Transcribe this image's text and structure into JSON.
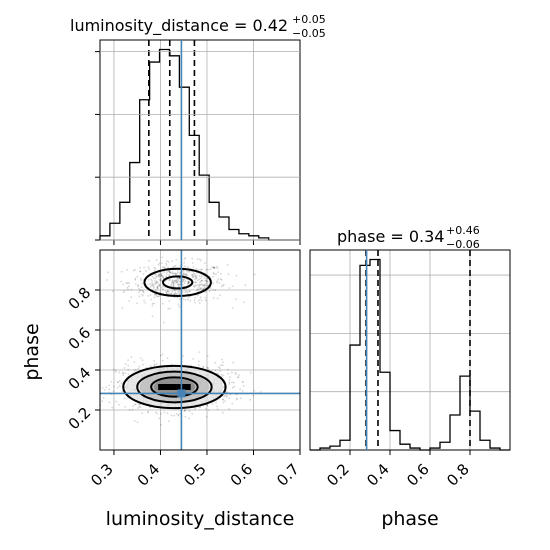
{
  "chart_data": {
    "type": "corner",
    "truth_color": "#4682b4",
    "parameters": [
      "luminosity_distance",
      "phase"
    ],
    "truths": {
      "luminosity_distance": 0.445,
      "phase": 0.283
    },
    "titles": {
      "luminosity_distance": {
        "main": "luminosity_distance = 0.42",
        "plus": "+0.05",
        "minus": "−0.05"
      },
      "phase": {
        "main": "phase = 0.34",
        "plus": "+0.46",
        "minus": "−0.06"
      }
    },
    "axis_labels": {
      "x1": "luminosity_distance",
      "x2": "phase",
      "y1": "phase"
    },
    "luminosity_distance_hist": {
      "xlim": [
        0.27,
        0.7
      ],
      "ylim": [
        0,
        100
      ],
      "bin_edges": [
        0.27,
        0.2913,
        0.3127,
        0.334,
        0.3553,
        0.3767,
        0.398,
        0.4193,
        0.4407,
        0.462,
        0.4833,
        0.5047,
        0.526,
        0.5473,
        0.5687,
        0.59,
        0.6113,
        0.6327,
        0.654,
        0.6753,
        0.7
      ],
      "counts": [
        2,
        8,
        18,
        37,
        67,
        85,
        91,
        88,
        73,
        50,
        31,
        18,
        11,
        5,
        3,
        2,
        1,
        0,
        0,
        0
      ],
      "quantiles": [
        0.375,
        0.42,
        0.473
      ]
    },
    "phase_hist": {
      "xlim": [
        0.0,
        1.0
      ],
      "ylim": [
        0,
        100
      ],
      "bin_edges": [
        0.0,
        0.05,
        0.1,
        0.15,
        0.2,
        0.25,
        0.3,
        0.35,
        0.4,
        0.45,
        0.5,
        0.55,
        0.6,
        0.65,
        0.7,
        0.75,
        0.8,
        0.85,
        0.9,
        0.95,
        1.0
      ],
      "counts": [
        0,
        1,
        2,
        5,
        54,
        95,
        98,
        40,
        10,
        3,
        1,
        0,
        1,
        4,
        18,
        38,
        20,
        5,
        1,
        0
      ],
      "quantiles": [
        0.28,
        0.34,
        0.8
      ]
    },
    "scatter_2d": {
      "xlim": [
        0.27,
        0.7
      ],
      "ylim": [
        0.0,
        1.0
      ],
      "x_ticks": [
        "0.3",
        "0.4",
        "0.5",
        "0.6",
        "0.7"
      ],
      "y_ticks": [
        "0.2",
        "0.4",
        "0.6",
        "0.8"
      ],
      "clusters": [
        {
          "cx": 0.437,
          "cy": 0.838,
          "sx": 0.042,
          "sy": 0.04
        },
        {
          "cx": 0.43,
          "cy": 0.315,
          "sx": 0.05,
          "sy": 0.048
        }
      ]
    },
    "phase_x_ticks": [
      "0.2",
      "0.4",
      "0.6",
      "0.8"
    ]
  }
}
